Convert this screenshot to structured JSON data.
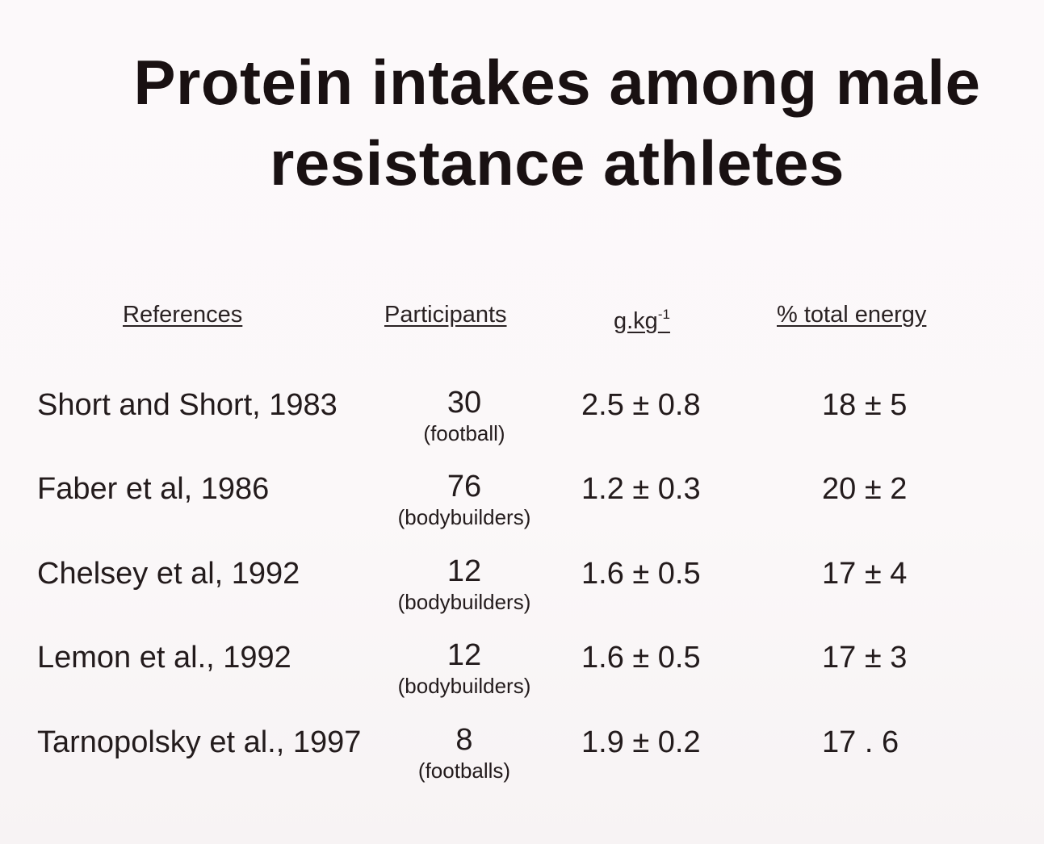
{
  "title": {
    "line1": "Protein intakes among male",
    "line2": "resistance athletes"
  },
  "headers": {
    "references": "References",
    "participants": "Participants",
    "gkg_base": "g.kg",
    "gkg_sup": "-1",
    "pct_energy": "% total energy"
  },
  "rows": [
    {
      "ref": "Short and Short, 1983",
      "participants": "30",
      "group": "(football)",
      "gkg": "2.5 ± 0.8",
      "pct": "18 ± 5"
    },
    {
      "ref": "Faber et al, 1986",
      "participants": "76",
      "group": "(bodybuilders)",
      "gkg": "1.2 ± 0.3",
      "pct": "20 ± 2"
    },
    {
      "ref": "Chelsey et al, 1992",
      "participants": "12",
      "group": "(bodybuilders)",
      "gkg": "1.6 ± 0.5",
      "pct": "17 ± 4"
    },
    {
      "ref": "Lemon et al., 1992",
      "participants": "12",
      "group": "(bodybuilders)",
      "gkg": "1.6 ± 0.5",
      "pct": "17 ± 3"
    },
    {
      "ref": "Tarnopolsky et al., 1997",
      "participants": "8",
      "group": "(footballs)",
      "gkg": "1.9 ± 0.2",
      "pct": "17 . 6"
    }
  ]
}
